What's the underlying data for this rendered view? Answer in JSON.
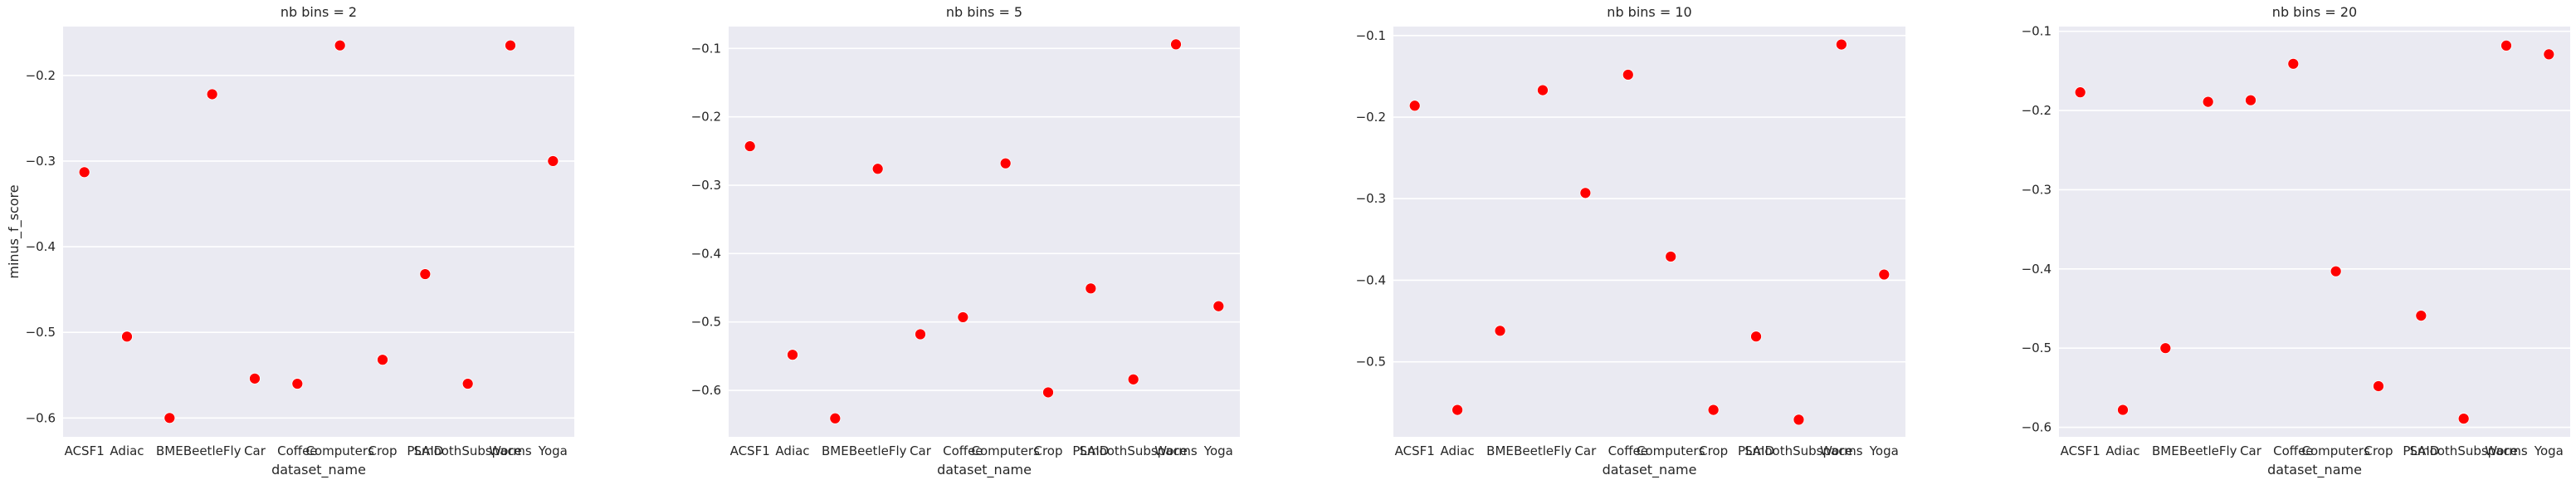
{
  "figure": {
    "xlabel": "dataset_name",
    "ylabel": "minus_f_score"
  },
  "chart_data": [
    {
      "type": "scatter",
      "title": "nb bins = 2",
      "xlabel": "dataset_name",
      "ylabel": "minus_f_score",
      "categories": [
        "ACSF1",
        "Adiac",
        "BME",
        "BeetleFly",
        "Car",
        "Coffee",
        "Computers",
        "Crop",
        "PLAID",
        "SmoothSubspace",
        "Worms",
        "Yoga"
      ],
      "values": [
        -0.313,
        -0.505,
        -0.6,
        -0.222,
        -0.554,
        -0.56,
        -0.165,
        -0.532,
        -0.432,
        -0.56,
        -0.165,
        -0.3
      ],
      "yticks": [
        -0.6,
        -0.5,
        -0.4,
        -0.3,
        -0.2
      ],
      "ylim": [
        -0.622,
        -0.143
      ],
      "grid": true,
      "marker_color": "#ff0000"
    },
    {
      "type": "scatter",
      "title": "nb bins = 5",
      "xlabel": "dataset_name",
      "ylabel": "",
      "categories": [
        "ACSF1",
        "Adiac",
        "BME",
        "BeetleFly",
        "Car",
        "Coffee",
        "Computers",
        "Crop",
        "PLAID",
        "SmoothSubspace",
        "Worms",
        "Yoga"
      ],
      "values": [
        -0.243,
        -0.548,
        -0.641,
        -0.276,
        -0.518,
        -0.493,
        -0.268,
        -0.603,
        -0.451,
        -0.584,
        -0.094,
        -0.477
      ],
      "yticks": [
        -0.6,
        -0.5,
        -0.4,
        -0.3,
        -0.2,
        -0.1
      ],
      "ylim": [
        -0.668,
        -0.068
      ],
      "grid": true,
      "marker_color": "#ff0000"
    },
    {
      "type": "scatter",
      "title": "nb bins = 10",
      "xlabel": "dataset_name",
      "ylabel": "",
      "categories": [
        "ACSF1",
        "Adiac",
        "BME",
        "BeetleFly",
        "Car",
        "Coffee",
        "Computers",
        "Crop",
        "PLAID",
        "SmoothSubspace",
        "Worms",
        "Yoga"
      ],
      "values": [
        -0.186,
        -0.559,
        -0.462,
        -0.167,
        -0.293,
        -0.148,
        -0.371,
        -0.559,
        -0.469,
        -0.571,
        -0.111,
        -0.393
      ],
      "yticks": [
        -0.5,
        -0.4,
        -0.3,
        -0.2,
        -0.1
      ],
      "ylim": [
        -0.592,
        -0.089
      ],
      "grid": true,
      "marker_color": "#ff0000"
    },
    {
      "type": "scatter",
      "title": "nb bins = 20",
      "xlabel": "dataset_name",
      "ylabel": "",
      "categories": [
        "ACSF1",
        "Adiac",
        "BME",
        "BeetleFly",
        "Car",
        "Coffee",
        "Computers",
        "Crop",
        "PLAID",
        "SmoothSubspace",
        "Worms",
        "Yoga"
      ],
      "values": [
        -0.177,
        -0.578,
        -0.5,
        -0.189,
        -0.187,
        -0.141,
        -0.403,
        -0.548,
        -0.459,
        -0.589,
        -0.118,
        -0.129
      ],
      "yticks": [
        -0.6,
        -0.5,
        -0.4,
        -0.3,
        -0.2,
        -0.1
      ],
      "ylim": [
        -0.612,
        -0.094
      ],
      "grid": true,
      "marker_color": "#ff0000"
    }
  ]
}
